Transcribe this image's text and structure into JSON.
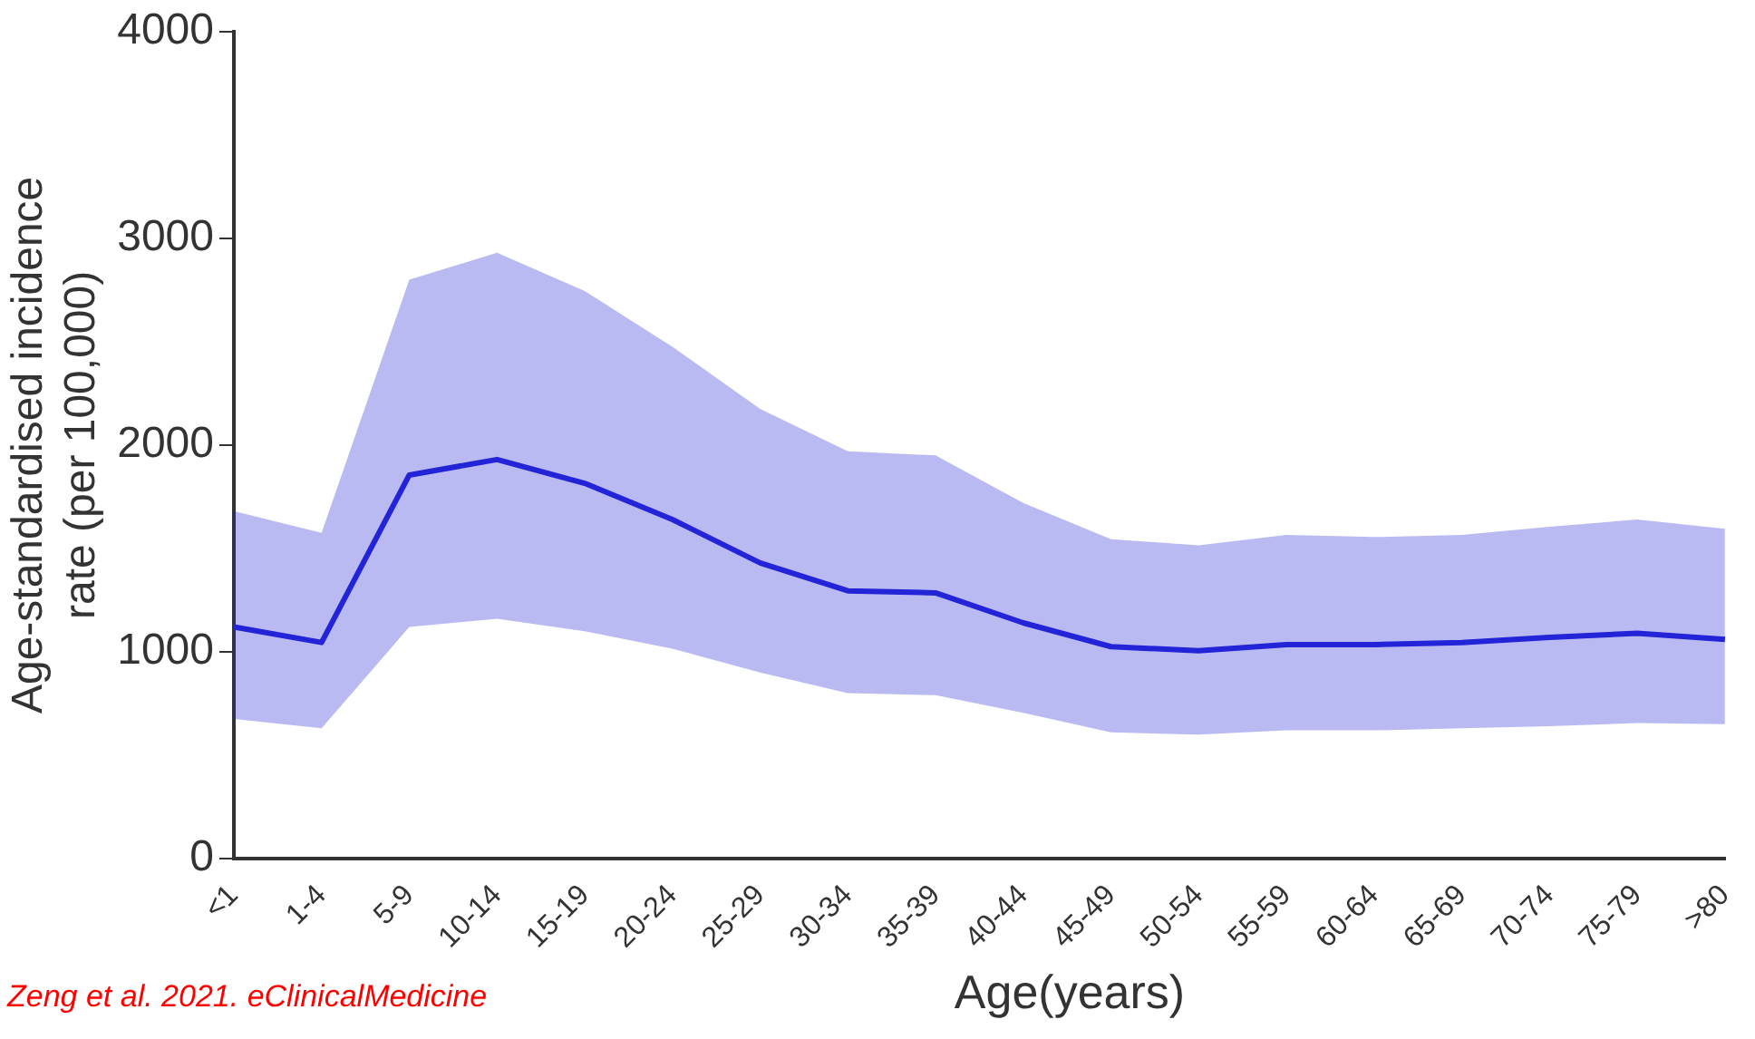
{
  "chart_data": {
    "type": "line",
    "xlabel": "Age(years)",
    "ylabel": "Age-standardised incidence rate (per 100,000)",
    "categories": [
      "<1",
      "1-4",
      "5-9",
      "10-14",
      "15-19",
      "20-24",
      "25-29",
      "30-34",
      "35-39",
      "40-44",
      "45-49",
      "50-54",
      "55-59",
      "60-64",
      "65-69",
      "70-74",
      "75-79",
      ">80"
    ],
    "series": [
      {
        "color": "#2323d8",
        "values": [
          1120,
          1045,
          1855,
          1930,
          1815,
          1640,
          1430,
          1295,
          1285,
          1140,
          1025,
          1005,
          1035,
          1035,
          1045,
          1070,
          1090,
          1060
        ],
        "lower": [
          675,
          630,
          1120,
          1160,
          1100,
          1015,
          900,
          800,
          790,
          705,
          610,
          600,
          620,
          620,
          630,
          640,
          655,
          650
        ],
        "upper": [
          1680,
          1575,
          2800,
          2930,
          2745,
          2475,
          2175,
          1970,
          1950,
          1720,
          1545,
          1515,
          1565,
          1555,
          1565,
          1605,
          1640,
          1595
        ]
      }
    ],
    "ylim": [
      0,
      4000
    ],
    "yticks": [
      0,
      1000,
      2000,
      3000,
      4000
    ],
    "grid": false,
    "legend": false,
    "marker": "none",
    "line_style": "solid",
    "annotations": [
      "Zeng et al. 2021. eClinicalMedicine"
    ]
  }
}
